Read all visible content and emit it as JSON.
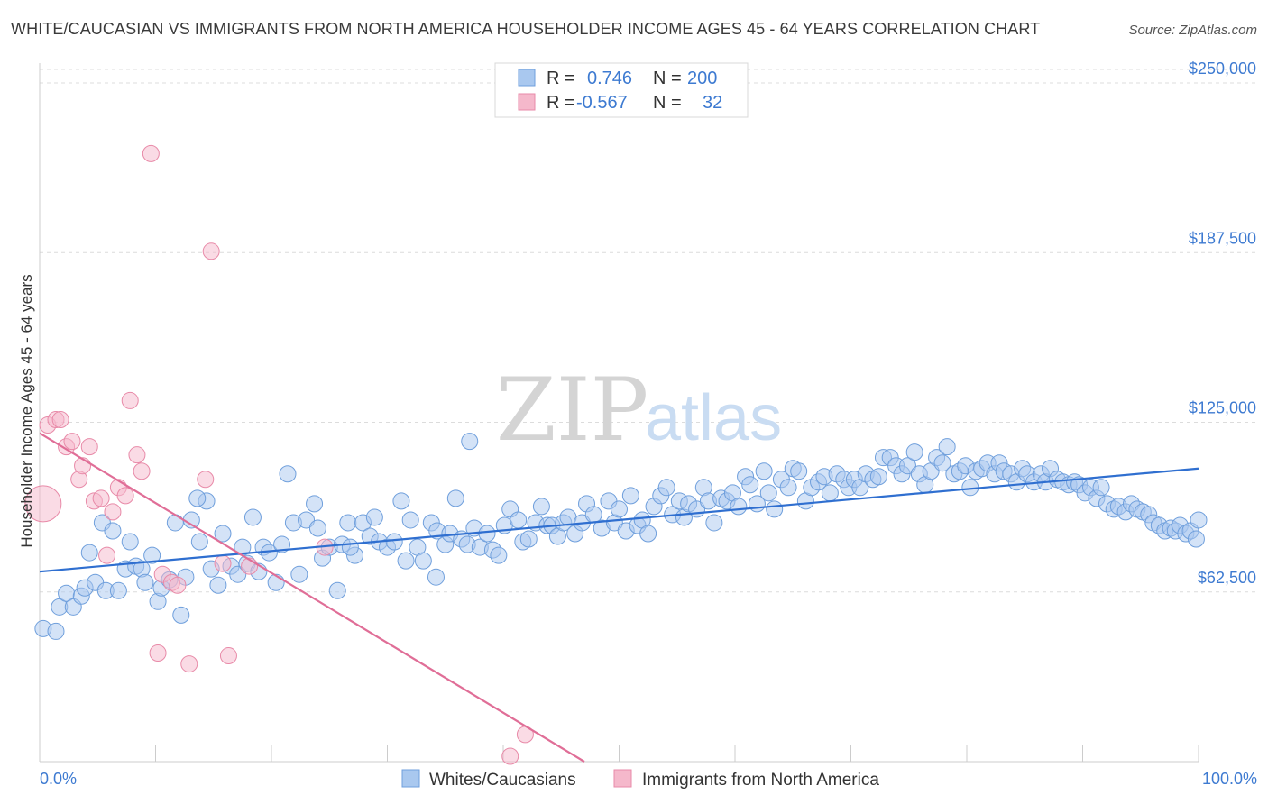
{
  "title": "WHITE/CAUCASIAN VS IMMIGRANTS FROM NORTH AMERICA HOUSEHOLDER INCOME AGES 45 - 64 YEARS CORRELATION CHART",
  "source": "Source: ZipAtlas.com",
  "watermark": {
    "zip": "ZIP",
    "atlas": "atlas"
  },
  "legend": {
    "rows": [
      {
        "r_label": "R =",
        "r_value": "0.746",
        "n_label": "N =",
        "n_value": "200",
        "color": "#a9c8ef"
      },
      {
        "r_label": "R =",
        "r_value": "-0.567",
        "n_label": "N =",
        "n_value": "32",
        "color": "#f5b8cb"
      }
    ]
  },
  "chart_data": {
    "type": "scatter",
    "title": "WHITE/CAUCASIAN VS IMMIGRANTS FROM NORTH AMERICA HOUSEHOLDER INCOME AGES 45 - 64 YEARS CORRELATION CHART",
    "xlabel": "",
    "ylabel": "Householder Income Ages 45 - 64 years",
    "xlim": [
      0,
      100
    ],
    "ylim": [
      0,
      255000
    ],
    "x_tick_labels": [
      "0.0%",
      "100.0%"
    ],
    "y_ticks": [
      62500,
      125000,
      187500,
      250000
    ],
    "y_tick_labels": [
      "$62,500",
      "$125,000",
      "$187,500",
      "$250,000"
    ],
    "grid": "horizontal dashed",
    "legend_position": "top-center",
    "series": [
      {
        "name": "Whites/Caucasians",
        "color": "#a9c8ef",
        "edge": "#6f9fdc",
        "trend": {
          "x": [
            0,
            100
          ],
          "y": [
            70000,
            108000
          ],
          "color": "#2f6fd0"
        },
        "points": [
          [
            0.3,
            49000
          ],
          [
            1.4,
            48000
          ],
          [
            1.7,
            57000
          ],
          [
            2.3,
            62000
          ],
          [
            2.9,
            57000
          ],
          [
            3.6,
            61000
          ],
          [
            3.9,
            64000
          ],
          [
            4.3,
            77000
          ],
          [
            4.8,
            66000
          ],
          [
            5.4,
            88000
          ],
          [
            5.7,
            63000
          ],
          [
            6.3,
            85000
          ],
          [
            6.8,
            63000
          ],
          [
            7.4,
            71000
          ],
          [
            7.8,
            81000
          ],
          [
            8.3,
            72000
          ],
          [
            8.8,
            71000
          ],
          [
            9.1,
            66000
          ],
          [
            9.7,
            76000
          ],
          [
            10.2,
            59000
          ],
          [
            10.5,
            64000
          ],
          [
            11.2,
            67000
          ],
          [
            11.7,
            88000
          ],
          [
            12.2,
            54000
          ],
          [
            12.6,
            68000
          ],
          [
            13.1,
            89000
          ],
          [
            13.8,
            81000
          ],
          [
            14.4,
            96000
          ],
          [
            14.8,
            71000
          ],
          [
            15.4,
            65000
          ],
          [
            15.8,
            84000
          ],
          [
            16.5,
            72000
          ],
          [
            17.1,
            69000
          ],
          [
            17.5,
            79000
          ],
          [
            17.9,
            73000
          ],
          [
            18.4,
            90000
          ],
          [
            18.9,
            70000
          ],
          [
            19.3,
            79000
          ],
          [
            19.8,
            77000
          ],
          [
            20.4,
            66000
          ],
          [
            20.9,
            80000
          ],
          [
            21.4,
            106000
          ],
          [
            21.9,
            88000
          ],
          [
            22.4,
            69000
          ],
          [
            23.0,
            89000
          ],
          [
            23.7,
            95000
          ],
          [
            24.0,
            86000
          ],
          [
            24.4,
            75000
          ],
          [
            25.0,
            79000
          ],
          [
            25.7,
            63000
          ],
          [
            26.1,
            80000
          ],
          [
            26.6,
            88000
          ],
          [
            27.2,
            76000
          ],
          [
            27.9,
            88000
          ],
          [
            28.5,
            83000
          ],
          [
            28.9,
            90000
          ],
          [
            29.3,
            81000
          ],
          [
            30.0,
            79000
          ],
          [
            30.6,
            81000
          ],
          [
            31.2,
            96000
          ],
          [
            31.6,
            74000
          ],
          [
            32.0,
            89000
          ],
          [
            32.6,
            79000
          ],
          [
            33.1,
            74000
          ],
          [
            33.8,
            88000
          ],
          [
            34.3,
            85000
          ],
          [
            35.0,
            80000
          ],
          [
            35.4,
            84000
          ],
          [
            35.9,
            97000
          ],
          [
            36.4,
            82000
          ],
          [
            36.9,
            80000
          ],
          [
            37.5,
            86000
          ],
          [
            38.0,
            79000
          ],
          [
            38.6,
            84000
          ],
          [
            39.1,
            78000
          ],
          [
            39.6,
            76000
          ],
          [
            40.1,
            87000
          ],
          [
            40.6,
            93000
          ],
          [
            41.3,
            89000
          ],
          [
            41.7,
            81000
          ],
          [
            42.2,
            82000
          ],
          [
            42.8,
            88000
          ],
          [
            43.3,
            94000
          ],
          [
            43.8,
            87000
          ],
          [
            44.2,
            87000
          ],
          [
            44.7,
            83000
          ],
          [
            45.2,
            88000
          ],
          [
            45.6,
            90000
          ],
          [
            46.2,
            84000
          ],
          [
            46.8,
            88000
          ],
          [
            47.2,
            95000
          ],
          [
            47.8,
            91000
          ],
          [
            48.5,
            86000
          ],
          [
            49.1,
            96000
          ],
          [
            49.6,
            88000
          ],
          [
            50.0,
            93000
          ],
          [
            50.6,
            85000
          ],
          [
            51.0,
            98000
          ],
          [
            51.6,
            87000
          ],
          [
            52.0,
            89000
          ],
          [
            52.5,
            84000
          ],
          [
            53.0,
            94000
          ],
          [
            53.6,
            98000
          ],
          [
            54.1,
            101000
          ],
          [
            54.6,
            91000
          ],
          [
            55.2,
            96000
          ],
          [
            55.6,
            90000
          ],
          [
            56.0,
            95000
          ],
          [
            56.7,
            93000
          ],
          [
            57.3,
            101000
          ],
          [
            57.7,
            96000
          ],
          [
            58.2,
            88000
          ],
          [
            58.8,
            97000
          ],
          [
            59.3,
            96000
          ],
          [
            59.8,
            99000
          ],
          [
            60.3,
            94000
          ],
          [
            60.9,
            105000
          ],
          [
            61.3,
            102000
          ],
          [
            61.9,
            95000
          ],
          [
            62.5,
            107000
          ],
          [
            62.9,
            99000
          ],
          [
            63.4,
            93000
          ],
          [
            64.0,
            104000
          ],
          [
            64.6,
            101000
          ],
          [
            65.0,
            108000
          ],
          [
            65.5,
            107000
          ],
          [
            66.1,
            96000
          ],
          [
            66.6,
            101000
          ],
          [
            67.2,
            103000
          ],
          [
            67.7,
            105000
          ],
          [
            68.2,
            99000
          ],
          [
            68.8,
            106000
          ],
          [
            69.4,
            104000
          ],
          [
            69.8,
            101000
          ],
          [
            70.3,
            104000
          ],
          [
            70.8,
            101000
          ],
          [
            71.3,
            106000
          ],
          [
            71.9,
            104000
          ],
          [
            72.4,
            105000
          ],
          [
            72.8,
            112000
          ],
          [
            73.4,
            112000
          ],
          [
            73.9,
            109000
          ],
          [
            74.4,
            106000
          ],
          [
            74.9,
            109000
          ],
          [
            75.5,
            114000
          ],
          [
            75.9,
            106000
          ],
          [
            76.4,
            102000
          ],
          [
            76.9,
            107000
          ],
          [
            77.4,
            112000
          ],
          [
            77.9,
            110000
          ],
          [
            78.3,
            116000
          ],
          [
            78.9,
            106000
          ],
          [
            79.4,
            107000
          ],
          [
            79.9,
            109000
          ],
          [
            80.3,
            101000
          ],
          [
            80.8,
            107000
          ],
          [
            81.3,
            108000
          ],
          [
            81.8,
            110000
          ],
          [
            82.4,
            106000
          ],
          [
            82.8,
            110000
          ],
          [
            83.2,
            107000
          ],
          [
            83.8,
            106000
          ],
          [
            84.3,
            103000
          ],
          [
            84.8,
            108000
          ],
          [
            85.2,
            106000
          ],
          [
            85.8,
            103000
          ],
          [
            86.4,
            106000
          ],
          [
            86.8,
            103000
          ],
          [
            87.2,
            108000
          ],
          [
            87.8,
            104000
          ],
          [
            88.3,
            103000
          ],
          [
            88.8,
            102000
          ],
          [
            89.3,
            103000
          ],
          [
            89.7,
            102000
          ],
          [
            90.2,
            99000
          ],
          [
            90.7,
            101000
          ],
          [
            91.2,
            97000
          ],
          [
            91.6,
            101000
          ],
          [
            92.1,
            95000
          ],
          [
            92.7,
            93000
          ],
          [
            93.1,
            94000
          ],
          [
            93.7,
            92000
          ],
          [
            94.2,
            95000
          ],
          [
            94.7,
            93000
          ],
          [
            95.2,
            92000
          ],
          [
            95.7,
            91000
          ],
          [
            96.1,
            88000
          ],
          [
            96.6,
            87000
          ],
          [
            97.1,
            85000
          ],
          [
            97.6,
            86000
          ],
          [
            98.0,
            85000
          ],
          [
            98.4,
            87000
          ],
          [
            98.9,
            84000
          ],
          [
            99.3,
            85000
          ],
          [
            99.8,
            82000
          ],
          [
            100.0,
            89000
          ],
          [
            37.1,
            118000
          ],
          [
            34.2,
            68000
          ],
          [
            26.8,
            79000
          ],
          [
            13.6,
            97000
          ]
        ]
      },
      {
        "name": "Immigrants from North America",
        "color": "#f5b8cb",
        "edge": "#e88aa8",
        "trend": {
          "x": [
            0,
            47
          ],
          "y": [
            121000,
            0
          ],
          "color": "#e06e97"
        },
        "points": [
          [
            0.3,
            95000
          ],
          [
            0.7,
            124000
          ],
          [
            1.4,
            126000
          ],
          [
            1.8,
            126000
          ],
          [
            2.3,
            116000
          ],
          [
            2.8,
            118000
          ],
          [
            3.4,
            104000
          ],
          [
            3.7,
            109000
          ],
          [
            4.3,
            116000
          ],
          [
            4.7,
            96000
          ],
          [
            5.3,
            97000
          ],
          [
            5.8,
            76000
          ],
          [
            6.3,
            92000
          ],
          [
            6.8,
            101000
          ],
          [
            7.4,
            98000
          ],
          [
            7.8,
            133000
          ],
          [
            8.4,
            113000
          ],
          [
            8.8,
            107000
          ],
          [
            9.6,
            224000
          ],
          [
            10.2,
            40000
          ],
          [
            10.6,
            69000
          ],
          [
            11.4,
            66000
          ],
          [
            11.9,
            65000
          ],
          [
            12.9,
            36000
          ],
          [
            14.3,
            104000
          ],
          [
            14.8,
            188000
          ],
          [
            15.8,
            73000
          ],
          [
            16.3,
            39000
          ],
          [
            18.1,
            72000
          ],
          [
            24.6,
            79000
          ],
          [
            40.6,
            2000
          ],
          [
            41.9,
            10000
          ]
        ]
      }
    ]
  },
  "bottom_legend": [
    {
      "label": "Whites/Caucasians",
      "color": "#a9c8ef"
    },
    {
      "label": "Immigrants from North America",
      "color": "#f5b8cb"
    }
  ]
}
